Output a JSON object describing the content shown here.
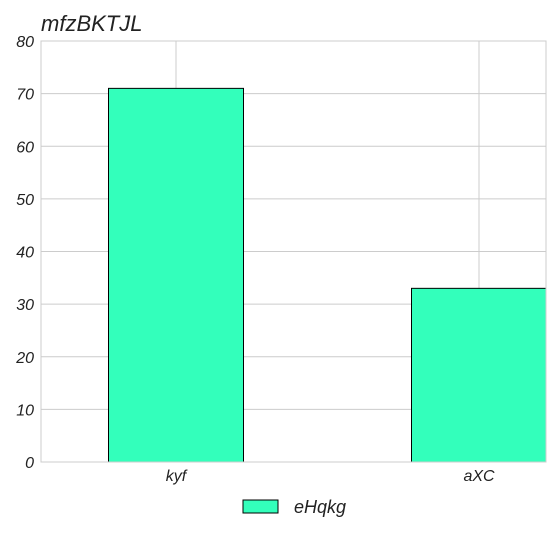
{
  "chart_data": {
    "type": "bar",
    "title": "mfzBKTJL",
    "xlabel": "",
    "ylabel": "",
    "categories": [
      "kyf",
      "aXC"
    ],
    "series": [
      {
        "name": "eHqkg",
        "values": [
          71,
          33
        ]
      }
    ],
    "ylim": [
      0,
      80
    ],
    "yticks": [
      0,
      10,
      20,
      30,
      40,
      50,
      60,
      70,
      80
    ],
    "grid": true,
    "legend": "bottom-center",
    "colors": {
      "bar_fill": "#33ffbb",
      "bar_stroke": "#000000",
      "grid": "#cccccc",
      "axis": "#cccccc"
    }
  }
}
